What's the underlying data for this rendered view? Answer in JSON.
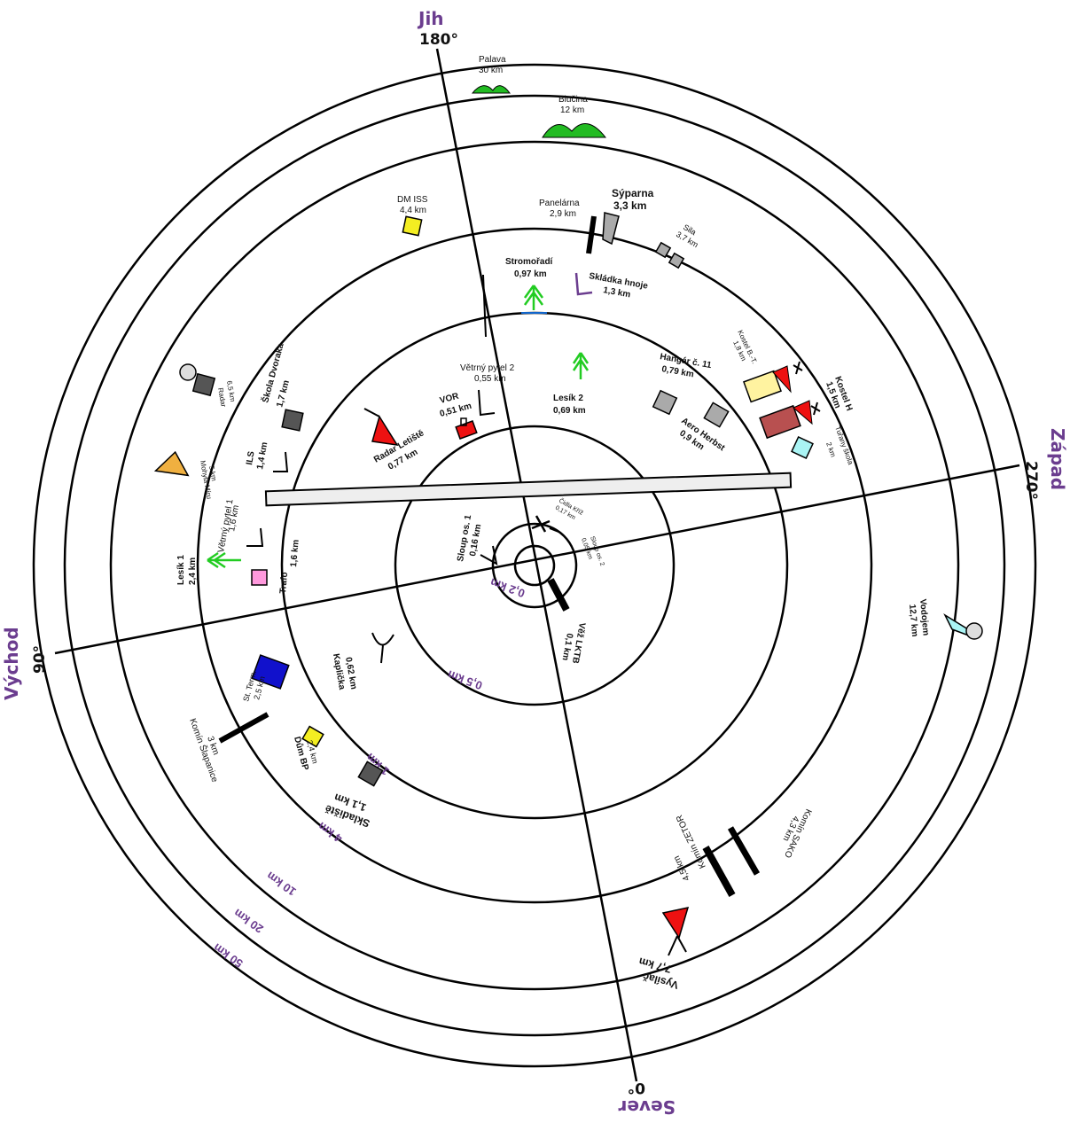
{
  "colors": {
    "direction": "#6b3d8f",
    "hill": "#22bb22",
    "tree": "#22cc22",
    "red": "#ee1111",
    "yellow": "#f4ee22",
    "blue": "#1111cc",
    "gray": "#aaaaaa",
    "darkgray": "#555555",
    "pink": "#ff99dd",
    "lightyellow": "#fff3a0",
    "brown": "#b85050",
    "cyan": "#aaf4f4",
    "orange": "#f0b040"
  },
  "directions": {
    "south": "Jih",
    "west": "Západ",
    "east": "Východ",
    "north": "Sever"
  },
  "degrees": {
    "d180": "180°",
    "d270": "270°",
    "d90": "90°",
    "d0": "0°"
  },
  "rings": {
    "r02": "0,2 km",
    "r05": "0,5 km",
    "r1": "1 km",
    "r4": "4 km",
    "r10": "10 km",
    "r20": "20 km",
    "r50": "50 km"
  },
  "landmarks": {
    "palava": {
      "name": "Palava",
      "dist": "30 km"
    },
    "blucina": {
      "name": "Blučina",
      "dist": "12 km"
    },
    "dm_iss": {
      "name": "DM ISS",
      "dist": "4,4 km"
    },
    "panelarna": {
      "name": "Panelárna",
      "dist": "2,9 km"
    },
    "syparna": {
      "name": "Sýparna",
      "dist": "3,3 km"
    },
    "sila": {
      "name": "Sila",
      "dist": "3,7 km"
    },
    "stromoradi": {
      "name": "Stromořadí",
      "dist": "0,97 km"
    },
    "skladka": {
      "name": "Skládka hnoje",
      "dist": "1,3 km"
    },
    "radar": {
      "name": "Radar",
      "dist": "6,5 km"
    },
    "skola_dvoraka": {
      "name": "Škola Dvoraka",
      "dist": "1,7 km"
    },
    "vetrny_pytel_2": {
      "name": "Větrný pytel 2",
      "dist": "0,55 km"
    },
    "lesik_2": {
      "name": "Lesík 2",
      "dist": "0,69 km"
    },
    "hangar": {
      "name": "Hangár č. 11",
      "dist": "0,79 km"
    },
    "kostel_bt": {
      "name": "Kostel B.-T.",
      "dist": "1,8 km"
    },
    "kostel_h": {
      "name": "Kostel H",
      "dist": "1,5 km"
    },
    "vor": {
      "name": "VOR",
      "dist": "0,51 km"
    },
    "radar_letiste": {
      "name": "Radar Letiště",
      "dist": "0,77 km"
    },
    "aero_herbst": {
      "name": "Aero Herbst",
      "dist": "0,9 km"
    },
    "tulany_skola": {
      "name": "Tuřany škola",
      "dist": "2 km"
    },
    "ils": {
      "name": "ILS",
      "dist": "1,4 km"
    },
    "mohyla_miru": {
      "name": "Mohyla Míru",
      "dist": "5 km"
    },
    "vetrny_pytel_1": {
      "name": "Větrný pytel 1",
      "dist": "1,6 km"
    },
    "lesik_1": {
      "name": "Lesík 1",
      "dist": "2,4 km"
    },
    "trafo": {
      "name": "Trafo",
      "dist": "1,6 km"
    },
    "sloup_1": {
      "name": "Sloup os. 1",
      "dist": "0,16 km"
    },
    "cidla_kriz": {
      "name": "Čidla Kříž",
      "dist": "0,17 km"
    },
    "sloup_2": {
      "name": "Sloup os. 2",
      "dist": "0,05 km"
    },
    "vez_lktb": {
      "name": "Věž LKTB",
      "dist": "0,1 km"
    },
    "kaplicka": {
      "name": "Kaplička",
      "dist": "0,62 km"
    },
    "st_term": {
      "name": "St. Term.",
      "dist": "2,5 km"
    },
    "komin_slapanice": {
      "name": "Komín Šlapanice",
      "dist": "3 km"
    },
    "dum_bp": {
      "name": "Dům BP",
      "dist": "2,4 km"
    },
    "skladiste": {
      "name": "Skladiště",
      "dist": "1,1 km"
    },
    "vodojem": {
      "name": "Vodojem",
      "dist": "12,7 km"
    },
    "komin_sako": {
      "name": "Komín SAKO",
      "dist": "4,3 km"
    },
    "komin_zetor": {
      "name": "Komín ZETOR",
      "dist": "4,5 km"
    },
    "vysilac": {
      "name": "Vysílač",
      "dist": "7,7 km"
    }
  }
}
